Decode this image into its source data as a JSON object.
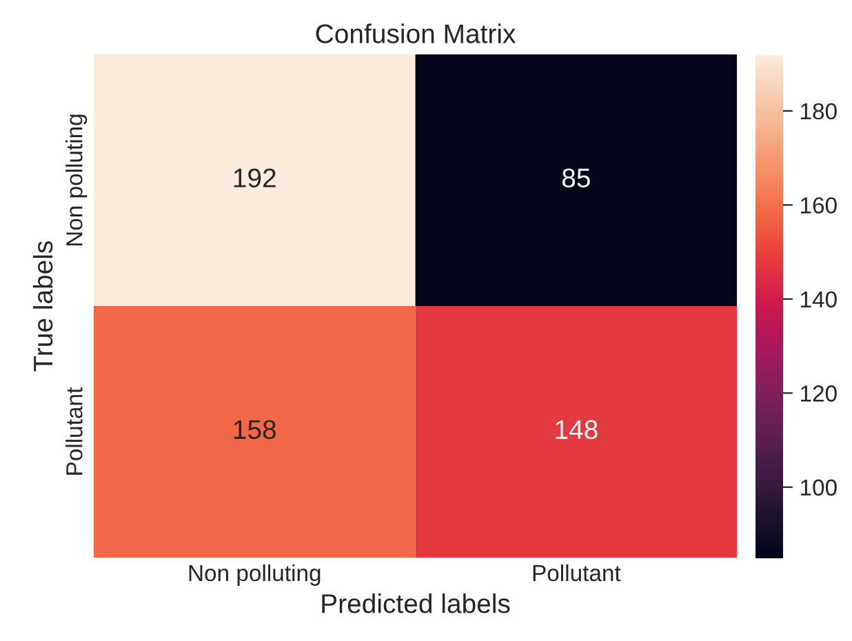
{
  "chart_data": {
    "type": "heatmap",
    "title": "Confusion Matrix",
    "xlabel": "Predicted labels",
    "ylabel": "True labels",
    "categories": [
      "Non polluting",
      "Pollutant"
    ],
    "y_categories": [
      "Non polluting",
      "Pollutant"
    ],
    "cells": [
      [
        192,
        85
      ],
      [
        158,
        148
      ]
    ],
    "clim": [
      85,
      192
    ],
    "cticks": [
      100,
      120,
      140,
      160,
      180
    ],
    "data_labels": true,
    "grid": false
  }
}
